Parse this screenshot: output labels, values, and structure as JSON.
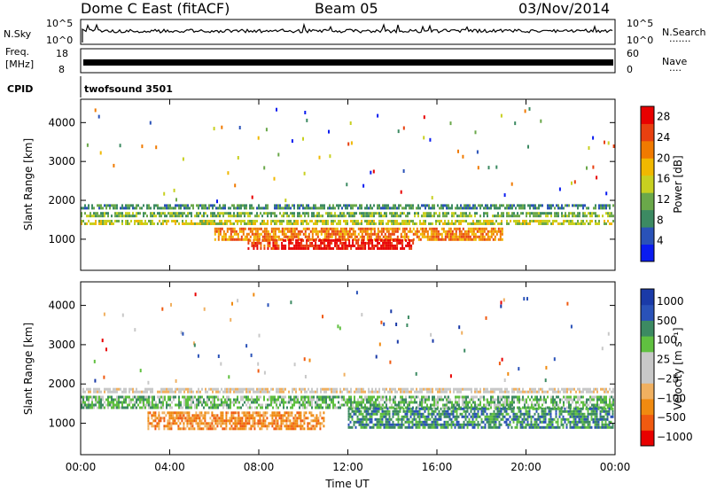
{
  "header": {
    "station": "Dome C East (fitACF)",
    "beam": "Beam 05",
    "date": "03/Nov/2014"
  },
  "panels": {
    "nsky": {
      "label": "N.Sky",
      "left_ticks": [
        "10^5",
        "10^0"
      ],
      "right_ticks": [
        "10^5",
        "10^0"
      ],
      "right_label": "N.Search",
      "right_label_dots": "·······"
    },
    "freq": {
      "label_top": "Freq.",
      "label_bottom": "[MHz]",
      "left_ticks": [
        "18",
        "8"
      ],
      "right_ticks": [
        "60",
        "0"
      ],
      "right_label": "Nave",
      "right_label_dots": "····"
    },
    "cpid": {
      "label": "CPID",
      "value": "twofsound 3501"
    }
  },
  "colors": {
    "power_scale": [
      "#0a1cf0",
      "#2a52b8",
      "#3c8a62",
      "#6aa84a",
      "#c8d020",
      "#f0b800",
      "#f07a00",
      "#e84010",
      "#e80000"
    ],
    "velocity_scale": [
      "#e80000",
      "#f05a10",
      "#f08a10",
      "#f0b060",
      "#c8c8c8",
      "#c8c8c8",
      "#60c040",
      "#3c8a62",
      "#2a52b8",
      "#1a3aa8"
    ]
  },
  "chart_data": [
    {
      "type": "heatmap",
      "name": "power",
      "ylabel": "Slant Range [km]",
      "y_ticks": [
        1000,
        2000,
        3000,
        4000
      ],
      "ylim": [
        200,
        4600
      ],
      "xlim_hours": [
        0,
        24
      ],
      "colorbar": {
        "label": "Power [dB]",
        "ticks": [
          "4",
          "8",
          "12",
          "16",
          "20",
          "24",
          "28"
        ],
        "range": [
          0,
          30
        ]
      },
      "bands": [
        {
          "range_km": [
            1700,
            1900
          ],
          "start_h": 0,
          "end_h": 24,
          "class": 2
        },
        {
          "range_km": [
            1500,
            1700
          ],
          "start_h": 0,
          "end_h": 24,
          "class": 3
        },
        {
          "range_km": [
            1300,
            1500
          ],
          "start_h": 0,
          "end_h": 24,
          "class": 4
        },
        {
          "range_km": [
            900,
            1300
          ],
          "start_h": 6,
          "end_h": 19,
          "class": 6
        },
        {
          "range_km": [
            700,
            1000
          ],
          "start_h": 9,
          "end_h": 15,
          "class": 8
        },
        {
          "range_km": [
            700,
            1000
          ],
          "start_h": 7.5,
          "end_h": 9,
          "class": 7
        }
      ]
    },
    {
      "type": "heatmap",
      "name": "velocity",
      "ylabel": "Slant Range [km]",
      "y_ticks": [
        1000,
        2000,
        3000,
        4000
      ],
      "ylim": [
        200,
        4600
      ],
      "xlim_hours": [
        0,
        24
      ],
      "xlabel": "Time UT",
      "x_ticks": [
        "00:00",
        "04:00",
        "08:00",
        "12:00",
        "16:00",
        "20:00",
        "00:00"
      ],
      "colorbar": {
        "label": "Velocity [m s⁻¹]",
        "ticks": [
          "1000",
          "500",
          "100",
          "25",
          "−25",
          "−100",
          "−500",
          "−1000"
        ]
      },
      "bands": [
        {
          "range_km": [
            1700,
            1900
          ],
          "start_h": 0,
          "end_h": 24,
          "class": 4
        },
        {
          "range_km": [
            1300,
            1700
          ],
          "start_h": 0,
          "end_h": 24,
          "class": 6
        },
        {
          "range_km": [
            800,
            1300
          ],
          "start_h": 3,
          "end_h": 11,
          "class": 2
        },
        {
          "range_km": [
            800,
            1400
          ],
          "start_h": 12,
          "end_h": 24,
          "class": 7
        }
      ]
    }
  ]
}
